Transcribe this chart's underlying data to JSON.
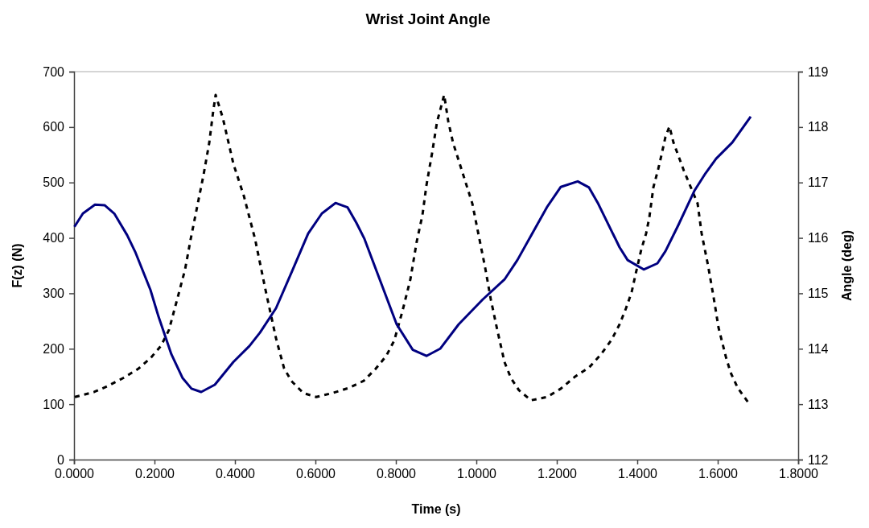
{
  "chart_data": {
    "type": "line",
    "title": "Wrist Joint Angle",
    "xlabel": "Time (s)",
    "ylabel": "F(z) (N)",
    "y2label": "Angle (deg)",
    "xlim": [
      0,
      1.8
    ],
    "xticks": [
      {
        "value": 0,
        "label": "0.0000"
      },
      {
        "value": 0.2,
        "label": "0.2000"
      },
      {
        "value": 0.4,
        "label": "0.4000"
      },
      {
        "value": 0.6,
        "label": "0.6000"
      },
      {
        "value": 0.8,
        "label": "0.8000"
      },
      {
        "value": 1.0,
        "label": "1.0000"
      },
      {
        "value": 1.2,
        "label": "1.2000"
      },
      {
        "value": 1.4,
        "label": "1.4000"
      },
      {
        "value": 1.6,
        "label": "1.6000"
      },
      {
        "value": 1.8,
        "label": "1.8000"
      }
    ],
    "ylim": [
      0,
      700
    ],
    "yticks": [
      0,
      100,
      200,
      300,
      400,
      500,
      600,
      700
    ],
    "y2lim": [
      112,
      119
    ],
    "y2ticks": [
      112,
      113,
      114,
      115,
      116,
      117,
      118,
      119
    ],
    "grid": false,
    "marker": "none",
    "series": [
      {
        "color": "#000000",
        "line_style": "dashed",
        "x": [
          0.002,
          0.05,
          0.082,
          0.122,
          0.16,
          0.19,
          0.216,
          0.236,
          0.256,
          0.276,
          0.29,
          0.306,
          0.322,
          0.336,
          0.346,
          0.352,
          0.37,
          0.396,
          0.422,
          0.45,
          0.476,
          0.502,
          0.522,
          0.54,
          0.57,
          0.602,
          0.642,
          0.682,
          0.72,
          0.75,
          0.776,
          0.796,
          0.816,
          0.836,
          0.852,
          0.866,
          0.876,
          0.89,
          0.902,
          0.92,
          0.93,
          0.942,
          0.966,
          0.99,
          1.006,
          1.022,
          1.036,
          1.052,
          1.07,
          1.086,
          1.106,
          1.136,
          1.176,
          1.21,
          1.246,
          1.28,
          1.31,
          1.336,
          1.356,
          1.372,
          1.386,
          1.396,
          1.41,
          1.422,
          1.43,
          1.44,
          1.452,
          1.46,
          1.47,
          1.48,
          1.49,
          1.516,
          1.55,
          1.56,
          1.576,
          1.59,
          1.602,
          1.62,
          1.632,
          1.65,
          1.676
        ],
        "values": [
          113,
          122,
          132,
          147,
          164,
          183,
          205,
          234,
          288,
          343,
          398,
          456,
          514,
          571,
          629,
          658,
          616,
          534,
          476,
          398,
          306,
          219,
          165,
          142,
          120,
          113,
          120,
          129,
          142,
          164,
          187,
          215,
          267,
          325,
          394,
          441,
          495,
          553,
          608,
          658,
          611,
          572,
          517,
          462,
          404,
          346,
          289,
          234,
          176,
          147,
          125,
          107,
          113,
          128,
          150,
          166,
          190,
          216,
          244,
          273,
          302,
          335,
          379,
          408,
          437,
          491,
          524,
          549,
          582,
          601,
          572,
          521,
          462,
          408,
          350,
          292,
          238,
          186,
          157,
          129,
          103
        ]
      },
      {
        "color": "#000080",
        "line_style": "solid",
        "axis": "y2",
        "x": [
          0.001,
          0.022,
          0.052,
          0.076,
          0.1,
          0.132,
          0.152,
          0.19,
          0.21,
          0.226,
          0.242,
          0.27,
          0.292,
          0.316,
          0.35,
          0.396,
          0.436,
          0.462,
          0.502,
          0.542,
          0.582,
          0.616,
          0.65,
          0.68,
          0.702,
          0.722,
          0.762,
          0.802,
          0.842,
          0.876,
          0.91,
          0.956,
          1.016,
          1.07,
          1.102,
          1.136,
          1.176,
          1.21,
          1.252,
          1.28,
          1.302,
          1.356,
          1.376,
          1.416,
          1.45,
          1.47,
          1.502,
          1.542,
          1.57,
          1.596,
          1.636,
          1.682
        ],
        "values": [
          116.2,
          116.44,
          116.6,
          116.59,
          116.44,
          116.05,
          115.75,
          115.06,
          114.58,
          114.24,
          113.9,
          113.47,
          113.28,
          113.22,
          113.35,
          113.76,
          114.05,
          114.29,
          114.73,
          115.4,
          116.08,
          116.44,
          116.63,
          116.55,
          116.27,
          115.98,
          115.21,
          114.44,
          113.98,
          113.87,
          114,
          114.44,
          114.89,
          115.25,
          115.6,
          116.04,
          116.56,
          116.92,
          117.02,
          116.91,
          116.63,
          115.83,
          115.6,
          115.43,
          115.54,
          115.76,
          116.23,
          116.85,
          117.17,
          117.43,
          117.72,
          118.19
        ]
      }
    ]
  }
}
